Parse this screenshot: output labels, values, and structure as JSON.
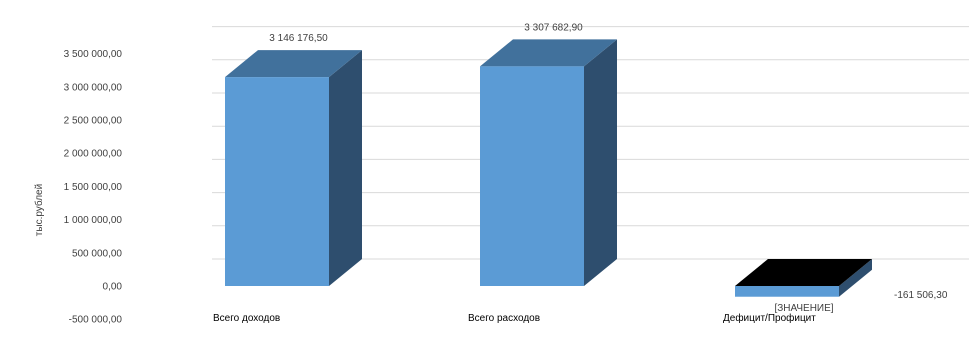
{
  "chart_data": {
    "type": "bar",
    "title": "",
    "xlabel": "",
    "ylabel": "тыс.рублей",
    "ylim": [
      -500000,
      3500000
    ],
    "y_ticks": [
      {
        "value": 3500000,
        "label": "3 500 000,00"
      },
      {
        "value": 3000000,
        "label": "3 000 000,00"
      },
      {
        "value": 2500000,
        "label": "2 500 000,00"
      },
      {
        "value": 2000000,
        "label": "2 000 000,00"
      },
      {
        "value": 1500000,
        "label": "1 500 000,00"
      },
      {
        "value": 1000000,
        "label": "1 000 000,00"
      },
      {
        "value": 500000,
        "label": "500 000,00"
      },
      {
        "value": 0,
        "label": "0,00"
      },
      {
        "value": -500000,
        "label": "-500 000,00"
      }
    ],
    "categories": [
      "Всего доходов",
      "Всего расходов",
      "Дефицит/Профицит"
    ],
    "values": [
      3146176.5,
      3307682.9,
      -161506.3
    ],
    "data_labels": [
      "3 146 176,50",
      "3 307 682,90",
      "-161 506,30"
    ],
    "extra_label": "[ЗНАЧЕНИЕ]",
    "grid": true,
    "legend": "none",
    "colors": {
      "front": "#5b9bd5",
      "top": "#41719c",
      "side": "#2e4e6e",
      "deficit_top": "#000000",
      "grid": "#d9d9d9"
    }
  }
}
